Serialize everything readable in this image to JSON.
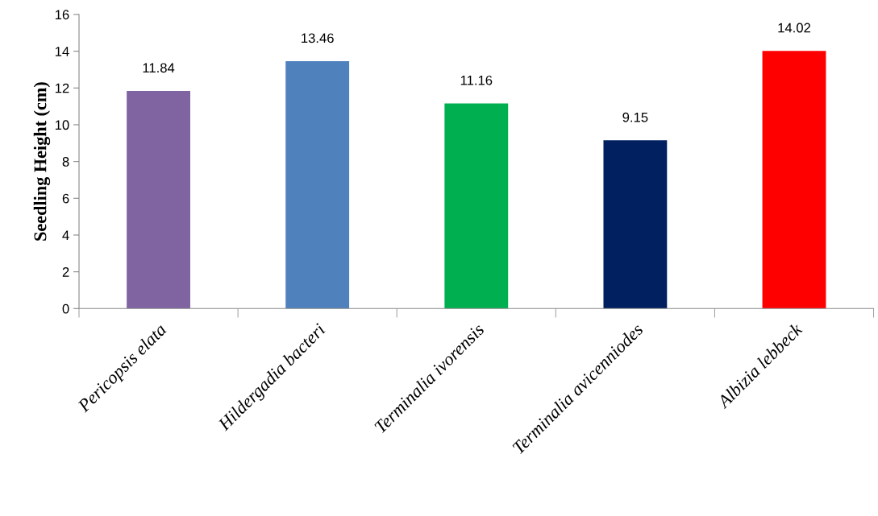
{
  "chart_data": {
    "type": "bar",
    "ylabel": "Seedling Height (cm)",
    "categories": [
      "Pericopsis elata",
      "Hildergadia bacteri",
      "Terminalia ivorensis",
      "Terminalia avicenniodes",
      "Albizia lebbeck"
    ],
    "values": [
      11.84,
      13.46,
      11.16,
      9.15,
      14.02
    ],
    "colors": [
      "#8064a2",
      "#4f81bd",
      "#00b050",
      "#002060",
      "#ff0000"
    ],
    "ylim": [
      0,
      16
    ],
    "yticks": [
      0,
      2,
      4,
      6,
      8,
      10,
      12,
      14,
      16
    ],
    "data_labels": true,
    "grid": false,
    "legend": false
  }
}
